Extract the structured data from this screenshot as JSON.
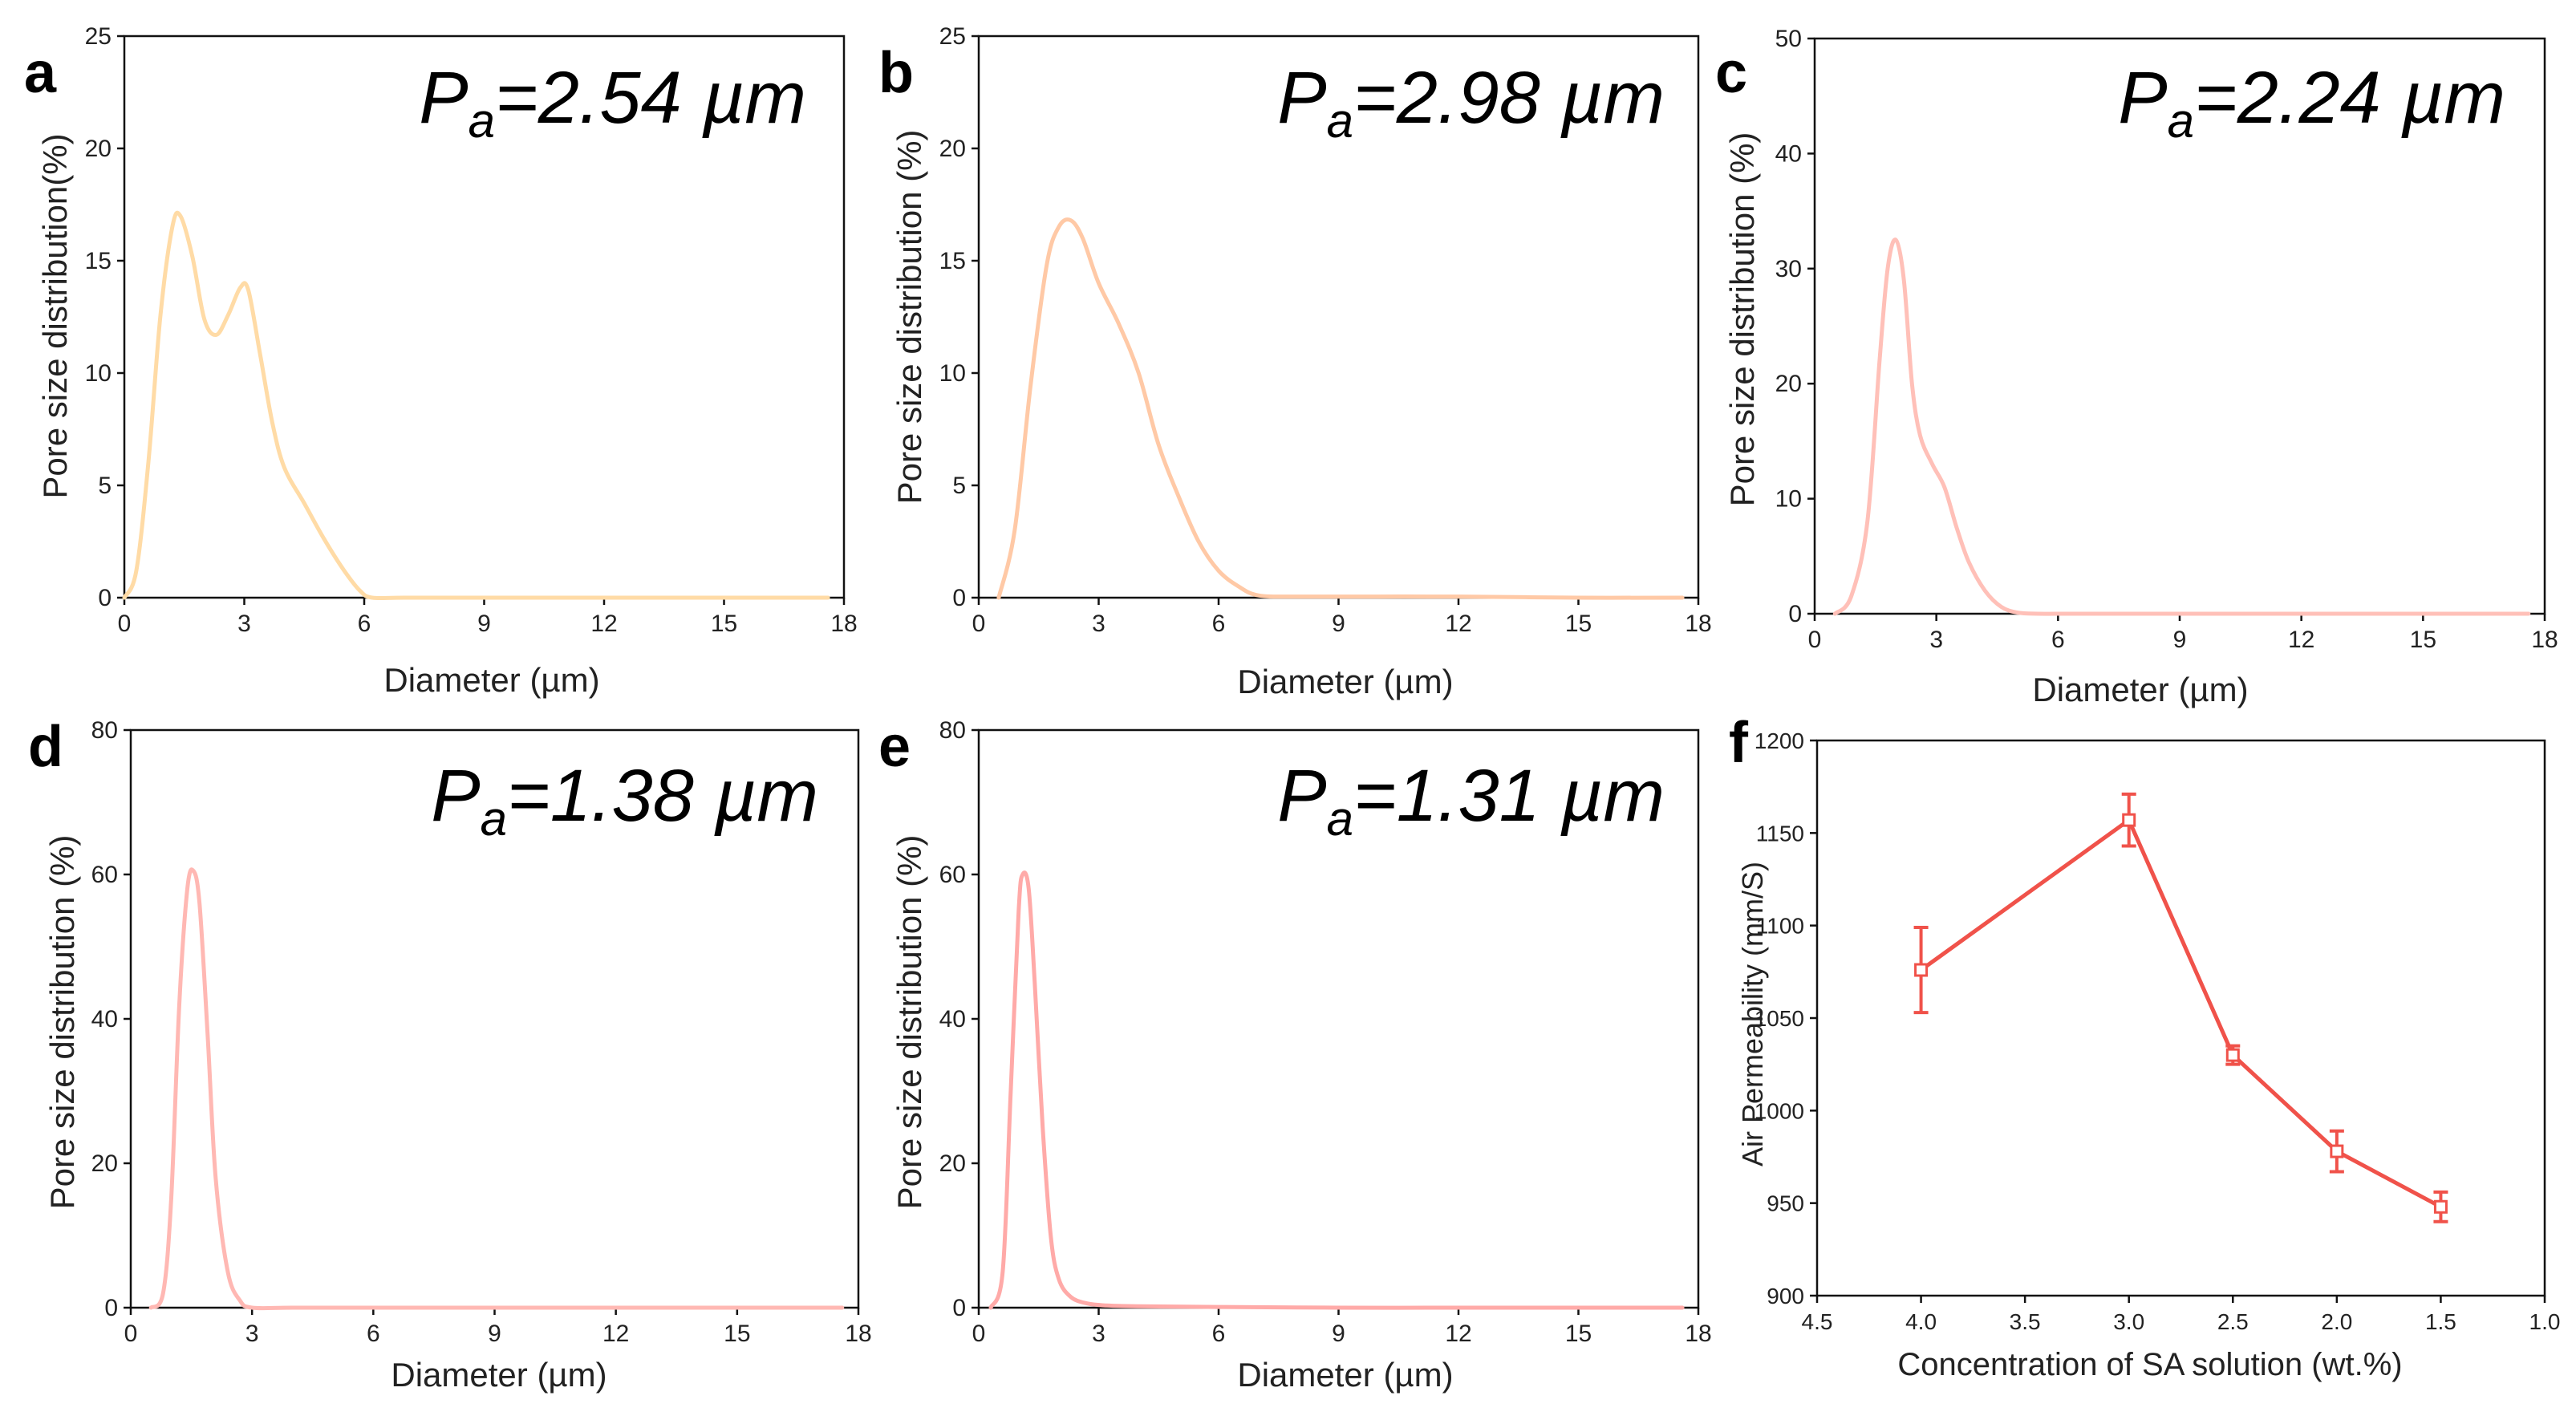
{
  "chart_data": [
    {
      "panel": "a",
      "type": "line",
      "xlabel": "Diameter (µm)",
      "ylabel": "Pore size distribution(%)",
      "xlim": [
        0,
        18
      ],
      "ylim": [
        0,
        25
      ],
      "xticks": [
        0,
        3,
        6,
        9,
        12,
        15,
        18
      ],
      "yticks": [
        0,
        5,
        10,
        15,
        20,
        25
      ],
      "annotation": {
        "main": "P",
        "sub": "a",
        "value": "=2.54 µm"
      },
      "color": "#ffdba6",
      "series": [
        {
          "name": "a",
          "x": [
            0,
            0.3,
            0.6,
            0.9,
            1.2,
            1.4,
            1.7,
            2.0,
            2.3,
            2.6,
            2.9,
            3.1,
            3.4,
            3.7,
            4.0,
            4.5,
            5.0,
            5.5,
            5.9,
            6.2,
            7,
            9,
            12,
            15,
            17.6
          ],
          "y": [
            0,
            1.2,
            6.0,
            12.5,
            16.5,
            17.0,
            15.2,
            12.4,
            11.7,
            12.6,
            13.8,
            13.7,
            10.8,
            7.8,
            5.8,
            4.2,
            2.6,
            1.2,
            0.3,
            0,
            0,
            0,
            0,
            0,
            0
          ]
        }
      ]
    },
    {
      "panel": "b",
      "type": "line",
      "xlabel": "Diameter (µm)",
      "ylabel": "Pore size distribution (%)",
      "xlim": [
        0,
        18
      ],
      "ylim": [
        0,
        25
      ],
      "xticks": [
        0,
        3,
        6,
        9,
        12,
        15,
        18
      ],
      "yticks": [
        0,
        5,
        10,
        15,
        20,
        25
      ],
      "annotation": {
        "main": "P",
        "sub": "a",
        "value": "=2.98 µm"
      },
      "color": "#ffc9a6",
      "series": [
        {
          "name": "b",
          "x": [
            0.5,
            0.9,
            1.3,
            1.7,
            2.0,
            2.3,
            2.6,
            3.0,
            3.5,
            4.0,
            4.5,
            5.0,
            5.5,
            6.0,
            6.5,
            7.0,
            8,
            10,
            12,
            15,
            17.6
          ],
          "y": [
            0,
            3.0,
            9.5,
            14.8,
            16.5,
            16.8,
            16.0,
            14.0,
            12.2,
            10.0,
            6.8,
            4.5,
            2.5,
            1.2,
            0.5,
            0.1,
            0.05,
            0.05,
            0.05,
            0,
            0
          ]
        }
      ]
    },
    {
      "panel": "c",
      "type": "line",
      "xlabel": "Diameter (µm)",
      "ylabel": "Pore size distribution (%)",
      "xlim": [
        0,
        18
      ],
      "ylim": [
        0,
        50
      ],
      "xticks": [
        0,
        3,
        6,
        9,
        12,
        15,
        18
      ],
      "yticks": [
        0,
        10,
        20,
        30,
        40,
        50
      ],
      "annotation": {
        "main": "P",
        "sub": "a",
        "value": "=2.24 µm"
      },
      "color": "#ffc0b8",
      "series": [
        {
          "name": "c",
          "x": [
            0.5,
            0.9,
            1.3,
            1.6,
            1.8,
            2.0,
            2.2,
            2.4,
            2.6,
            2.9,
            3.2,
            3.5,
            3.8,
            4.2,
            4.6,
            5.0,
            5.5,
            6.5,
            9,
            12,
            15,
            17.6
          ],
          "y": [
            0,
            1.5,
            8.0,
            22.0,
            30.0,
            32.5,
            29.0,
            20.0,
            15.5,
            13.0,
            11.0,
            7.5,
            4.5,
            2.0,
            0.6,
            0.1,
            0,
            0,
            0,
            0,
            0,
            0
          ]
        }
      ]
    },
    {
      "panel": "d",
      "type": "line",
      "xlabel": "Diameter (µm)",
      "ylabel": "Pore size distribution (%)",
      "xlim": [
        0,
        18
      ],
      "ylim": [
        0,
        80
      ],
      "xticks": [
        0,
        3,
        6,
        9,
        12,
        15,
        18
      ],
      "yticks": [
        0,
        20,
        40,
        60,
        80
      ],
      "annotation": {
        "main": "P",
        "sub": "a",
        "value": "=1.38 µm"
      },
      "color": "#ffb8b3",
      "series": [
        {
          "name": "d",
          "x": [
            0.5,
            0.8,
            1.0,
            1.2,
            1.4,
            1.55,
            1.7,
            1.9,
            2.1,
            2.4,
            2.7,
            3.0,
            4,
            6,
            9,
            12,
            15,
            17.6
          ],
          "y": [
            0,
            2.0,
            15.0,
            42.0,
            58.0,
            60.5,
            56.0,
            38.0,
            18.0,
            5.0,
            1.0,
            0,
            0,
            0,
            0,
            0,
            0,
            0
          ]
        }
      ]
    },
    {
      "panel": "e",
      "type": "line",
      "xlabel": "Diameter (µm)",
      "ylabel": "Pore size distribution (%)",
      "xlim": [
        0,
        18
      ],
      "ylim": [
        0,
        80
      ],
      "xticks": [
        0,
        3,
        6,
        9,
        12,
        15,
        18
      ],
      "yticks": [
        0,
        20,
        40,
        60,
        80
      ],
      "annotation": {
        "main": "P",
        "sub": "a",
        "value": "=1.31 µm"
      },
      "color": "#ffaaa8",
      "series": [
        {
          "name": "e",
          "x": [
            0.3,
            0.6,
            0.8,
            1.0,
            1.1,
            1.25,
            1.4,
            1.6,
            1.8,
            2.0,
            2.3,
            2.7,
            3.2,
            4,
            6,
            9,
            12,
            15,
            17.6
          ],
          "y": [
            0,
            5.0,
            30.0,
            55.0,
            60.0,
            58.0,
            45.0,
            25.0,
            10.0,
            4.0,
            1.5,
            0.6,
            0.3,
            0.2,
            0.1,
            0,
            0,
            0,
            0
          ]
        }
      ]
    },
    {
      "panel": "f",
      "type": "line",
      "xlabel": "Concentration of SA solution (wt.%)",
      "ylabel": "Air Permeability (mm/S)",
      "xlim": [
        4.5,
        1.0
      ],
      "ylim": [
        900,
        1200
      ],
      "xticks": [
        4.5,
        4.0,
        3.5,
        3.0,
        2.5,
        2.0,
        1.5,
        1.0
      ],
      "yticks": [
        900,
        950,
        1000,
        1050,
        1100,
        1150,
        1200
      ],
      "xtick_labels": [
        "4.5",
        "4.0",
        "3.5",
        "3.0",
        "2.5",
        "2.0",
        "1.5",
        "1.0"
      ],
      "color": "#f0524a",
      "series": [
        {
          "name": "f",
          "x": [
            4.0,
            3.0,
            2.5,
            2.0,
            1.5
          ],
          "y": [
            1076,
            1157,
            1030,
            978,
            948
          ],
          "err": [
            23,
            14,
            5,
            11,
            8
          ]
        }
      ]
    }
  ]
}
